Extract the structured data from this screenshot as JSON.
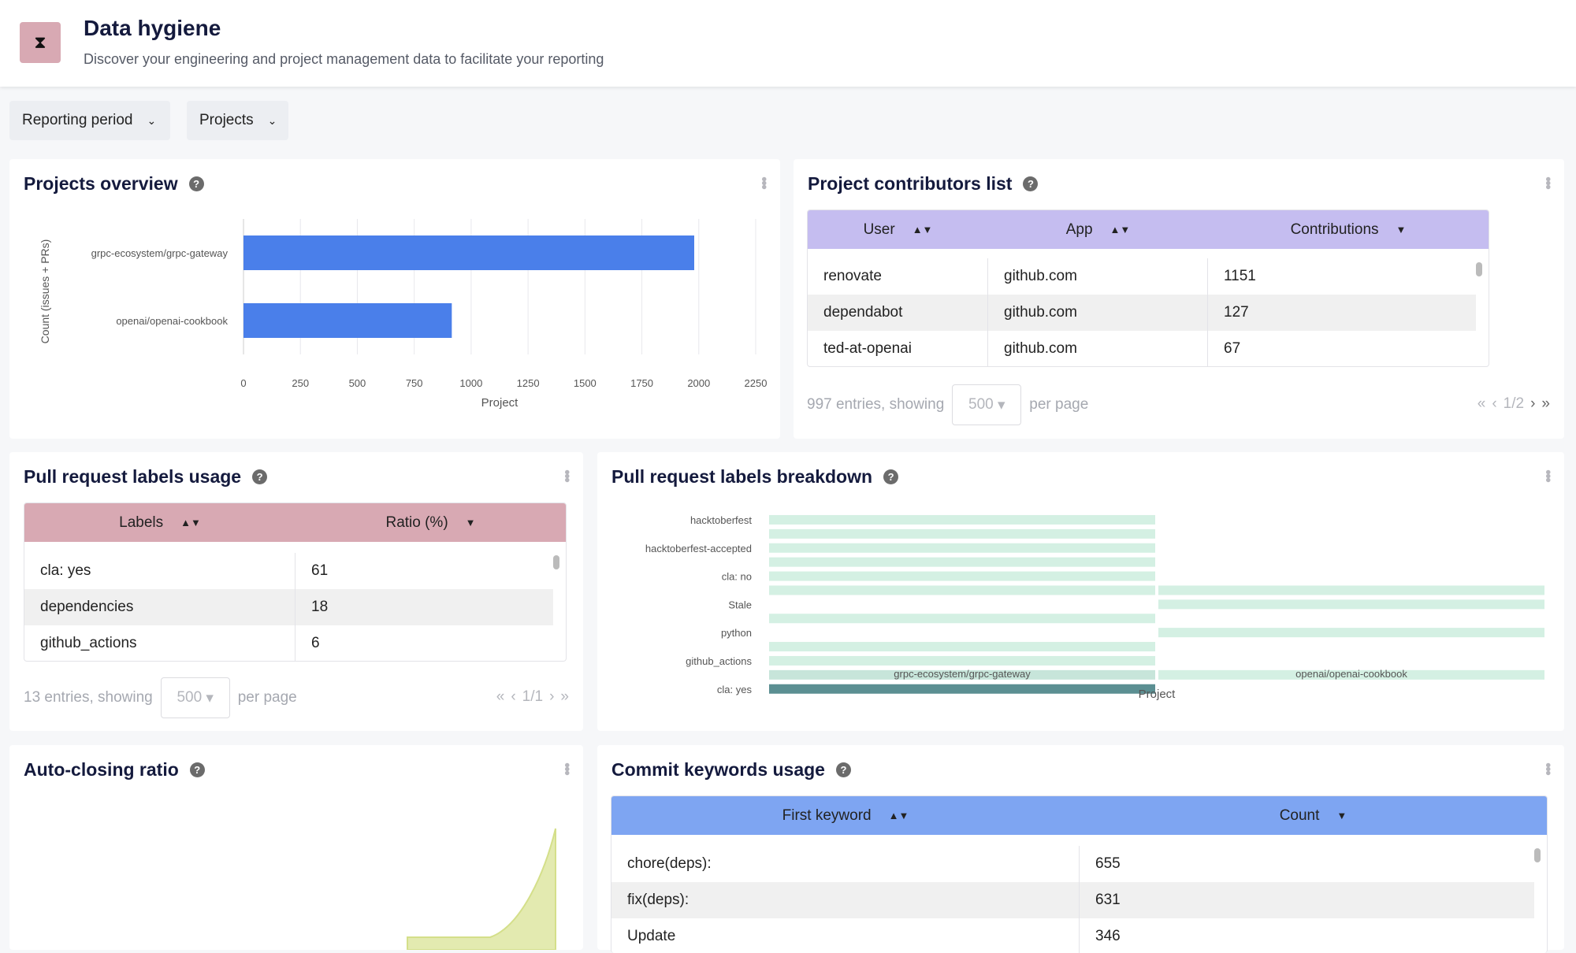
{
  "header": {
    "title": "Data hygiene",
    "subtitle": "Discover your engineering and project management data to facilitate your reporting",
    "icon": "hourglass-icon",
    "icon_color": "#d8a9b3"
  },
  "filters": [
    {
      "label": "Reporting period"
    },
    {
      "label": "Projects"
    }
  ],
  "projects_overview": {
    "title": "Projects overview"
  },
  "contributors": {
    "title": "Project contributors list",
    "header_color": "#c5bdf0",
    "columns": [
      "User",
      "App",
      "Contributions"
    ],
    "rows": [
      [
        "renovate",
        "github.com",
        "1151"
      ],
      [
        "dependabot",
        "github.com",
        "127"
      ],
      [
        "ted-at-openai",
        "github.com",
        "67"
      ]
    ],
    "pagination": {
      "entries": "997 entries, showing",
      "per_page_value": "500",
      "per_page": "per page",
      "page": "1/2"
    }
  },
  "labels_usage": {
    "title": "Pull request labels usage",
    "header_color": "#d8a9b3",
    "columns": [
      "Labels",
      "Ratio (%)"
    ],
    "rows": [
      [
        "cla: yes",
        "61"
      ],
      [
        "dependencies",
        "18"
      ],
      [
        "github_actions",
        "6"
      ]
    ],
    "pagination": {
      "entries": "13 entries, showing",
      "per_page_value": "500",
      "per_page": "per page",
      "page": "1/1"
    }
  },
  "labels_breakdown": {
    "title": "Pull request labels breakdown"
  },
  "auto_closing": {
    "title": "Auto-closing ratio",
    "fill_color": "#e3eab0"
  },
  "commit_keywords": {
    "title": "Commit keywords usage",
    "header_color": "#7ea5f2",
    "columns": [
      "First keyword",
      "Count"
    ],
    "rows": [
      [
        "chore(deps):",
        "655"
      ],
      [
        "fix(deps):",
        "631"
      ],
      [
        "Update",
        "346"
      ]
    ]
  },
  "chart_data": [
    {
      "type": "bar",
      "orientation": "horizontal",
      "categories": [
        "grpc-ecosystem/grpc-gateway",
        "openai/openai-cookbook"
      ],
      "values": [
        1980,
        915
      ],
      "xlabel": "Project",
      "ylabel": "Count (issues + PRs)",
      "xlim": [
        0,
        2250
      ],
      "xticks": [
        0,
        250,
        500,
        750,
        1000,
        1250,
        1500,
        1750,
        2000,
        2250
      ],
      "grid": true,
      "color": "#4a7fea"
    },
    {
      "type": "heatmap",
      "x": [
        "grpc-ecosystem/grpc-gateway",
        "openai/openai-cookbook"
      ],
      "y": [
        "hacktoberfest",
        "",
        "hacktoberfest-accepted",
        "",
        "cla: no",
        "",
        "Stale",
        "",
        "python",
        "",
        "github_actions",
        "",
        "cla: yes"
      ],
      "values": [
        [
          1,
          0
        ],
        [
          1,
          0
        ],
        [
          1,
          0
        ],
        [
          1,
          0
        ],
        [
          1,
          0
        ],
        [
          1,
          1
        ],
        [
          0,
          1
        ],
        [
          1,
          0
        ],
        [
          0,
          1
        ],
        [
          1,
          0
        ],
        [
          1,
          0
        ],
        [
          2,
          1
        ],
        [
          10,
          0
        ]
      ],
      "xlabel": "Project",
      "color_low": "#d4f0e3",
      "color_high": "#5b8f92"
    }
  ]
}
